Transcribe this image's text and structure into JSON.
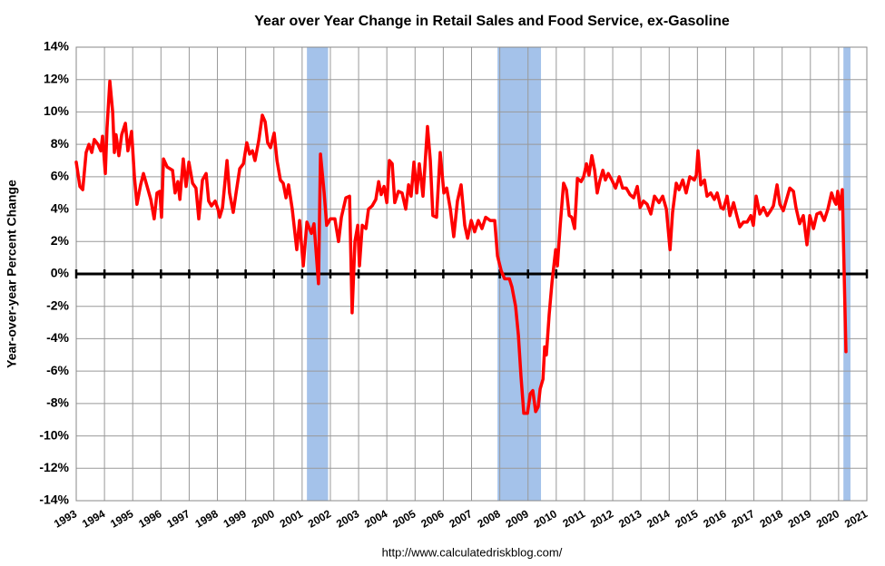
{
  "chart_data": {
    "type": "line",
    "title": "Year over Year Change in Retail Sales and Food Service, ex-Gasoline",
    "y_label": "Year-over-year Percent Change",
    "source": "http://www.calculatedriskblog.com/",
    "xlim": [
      1993,
      2021
    ],
    "xticks": [
      1993,
      1994,
      1995,
      1996,
      1997,
      1998,
      1999,
      2000,
      2001,
      2002,
      2003,
      2004,
      2005,
      2006,
      2007,
      2008,
      2009,
      2010,
      2011,
      2012,
      2013,
      2014,
      2015,
      2016,
      2017,
      2018,
      2019,
      2020,
      2021
    ],
    "ylim": [
      -14,
      14
    ],
    "yticks": [
      {
        "value": -14,
        "label": "-14%"
      },
      {
        "value": -12,
        "label": "-12%"
      },
      {
        "value": -10,
        "label": "-10%"
      },
      {
        "value": -8,
        "label": "-8%"
      },
      {
        "value": -6,
        "label": "-6%"
      },
      {
        "value": -4,
        "label": "-4%"
      },
      {
        "value": -2,
        "label": "-2%"
      },
      {
        "value": 0,
        "label": "0%"
      },
      {
        "value": 2,
        "label": "2%"
      },
      {
        "value": 4,
        "label": "4%"
      },
      {
        "value": 6,
        "label": "6%"
      },
      {
        "value": 8,
        "label": "8%"
      },
      {
        "value": 10,
        "label": "10%"
      },
      {
        "value": 12,
        "label": "12%"
      },
      {
        "value": 14,
        "label": "14%"
      }
    ],
    "grid": true,
    "recessions": [
      [
        2001.17,
        2001.92
      ],
      [
        2007.92,
        2009.46
      ],
      [
        2020.17,
        2020.42
      ]
    ],
    "recession_color": "#a4c2ea",
    "x": [
      1993.0,
      1993.13,
      1993.23,
      1993.35,
      1993.45,
      1993.55,
      1993.64,
      1993.77,
      1993.87,
      1993.93,
      1994.03,
      1994.09,
      1994.19,
      1994.29,
      1994.35,
      1994.41,
      1994.51,
      1994.61,
      1994.74,
      1994.83,
      1994.96,
      1995.06,
      1995.15,
      1995.28,
      1995.38,
      1995.51,
      1995.64,
      1995.76,
      1995.86,
      1995.96,
      1996.02,
      1996.09,
      1996.22,
      1996.41,
      1996.5,
      1996.6,
      1996.67,
      1996.79,
      1996.89,
      1996.99,
      1997.12,
      1997.24,
      1997.34,
      1997.47,
      1997.6,
      1997.69,
      1997.79,
      1997.92,
      1998.02,
      1998.08,
      1998.18,
      1998.34,
      1998.43,
      1998.56,
      1998.66,
      1998.79,
      1998.92,
      1999.04,
      1999.14,
      1999.24,
      1999.33,
      1999.46,
      1999.59,
      1999.69,
      1999.78,
      1999.88,
      2000.01,
      2000.11,
      2000.23,
      2000.33,
      2000.43,
      2000.52,
      2000.65,
      2000.81,
      2000.91,
      2001.04,
      2001.17,
      2001.33,
      2001.42,
      2001.58,
      2001.65,
      2001.78,
      2001.87,
      2002.0,
      2002.16,
      2002.29,
      2002.39,
      2002.55,
      2002.68,
      2002.77,
      2002.87,
      2002.97,
      2003.03,
      2003.13,
      2003.26,
      2003.35,
      2003.48,
      2003.61,
      2003.71,
      2003.8,
      2003.9,
      2004.0,
      2004.09,
      2004.19,
      2004.28,
      2004.41,
      2004.54,
      2004.67,
      2004.77,
      2004.86,
      2004.96,
      2005.06,
      2005.15,
      2005.28,
      2005.44,
      2005.54,
      2005.63,
      2005.76,
      2005.89,
      2006.02,
      2006.12,
      2006.25,
      2006.37,
      2006.5,
      2006.63,
      2006.76,
      2006.86,
      2006.99,
      2007.11,
      2007.24,
      2007.37,
      2007.5,
      2007.66,
      2007.82,
      2007.92,
      2008.05,
      2008.17,
      2008.34,
      2008.43,
      2008.56,
      2008.66,
      2008.75,
      2008.85,
      2008.98,
      2009.08,
      2009.17,
      2009.27,
      2009.36,
      2009.43,
      2009.53,
      2009.59,
      2009.65,
      2009.75,
      2009.85,
      2009.98,
      2010.04,
      2010.14,
      2010.26,
      2010.36,
      2010.46,
      2010.55,
      2010.65,
      2010.75,
      2010.88,
      2010.97,
      2011.07,
      2011.16,
      2011.26,
      2011.36,
      2011.45,
      2011.55,
      2011.65,
      2011.74,
      2011.84,
      2011.97,
      2012.1,
      2012.23,
      2012.35,
      2012.48,
      2012.61,
      2012.74,
      2012.87,
      2012.97,
      2013.09,
      2013.22,
      2013.35,
      2013.48,
      2013.64,
      2013.77,
      2013.9,
      2014.03,
      2014.12,
      2014.25,
      2014.35,
      2014.48,
      2014.6,
      2014.73,
      2014.89,
      2014.96,
      2015.02,
      2015.12,
      2015.25,
      2015.34,
      2015.47,
      2015.6,
      2015.7,
      2015.83,
      2015.92,
      2016.05,
      2016.15,
      2016.28,
      2016.41,
      2016.5,
      2016.63,
      2016.76,
      2016.89,
      2016.98,
      2017.08,
      2017.21,
      2017.34,
      2017.47,
      2017.59,
      2017.69,
      2017.82,
      2017.92,
      2018.04,
      2018.14,
      2018.27,
      2018.4,
      2018.49,
      2018.62,
      2018.75,
      2018.88,
      2018.98,
      2019.11,
      2019.23,
      2019.36,
      2019.49,
      2019.62,
      2019.75,
      2019.85,
      2019.91,
      2019.97,
      2020.04,
      2020.13,
      2020.26
    ],
    "series": [
      {
        "color": "#ff0000",
        "values": [
          6.9,
          5.4,
          5.2,
          7.5,
          8.0,
          7.5,
          8.3,
          8.0,
          7.6,
          8.5,
          6.2,
          9.0,
          11.9,
          10.0,
          7.5,
          8.6,
          7.3,
          8.6,
          9.3,
          7.6,
          8.8,
          6.0,
          4.3,
          5.5,
          6.2,
          5.4,
          4.6,
          3.4,
          5.0,
          5.1,
          3.5,
          7.1,
          6.6,
          6.4,
          5.0,
          5.7,
          4.6,
          7.1,
          5.4,
          6.9,
          5.6,
          5.3,
          3.4,
          5.8,
          6.2,
          4.5,
          4.2,
          4.5,
          4.0,
          3.5,
          4.1,
          7.0,
          5.0,
          3.8,
          5.0,
          6.5,
          6.8,
          8.1,
          7.4,
          7.6,
          7.0,
          8.2,
          9.8,
          9.4,
          8.1,
          7.8,
          8.7,
          7.0,
          5.8,
          5.6,
          4.7,
          5.5,
          4.0,
          1.5,
          3.3,
          0.5,
          3.2,
          2.5,
          3.1,
          -0.6,
          7.4,
          5.0,
          3.0,
          3.4,
          3.4,
          2.0,
          3.5,
          4.7,
          4.8,
          -2.4,
          2.0,
          3.0,
          0.5,
          3.0,
          2.8,
          4.0,
          4.2,
          4.6,
          5.7,
          4.9,
          5.4,
          4.4,
          7.0,
          6.8,
          4.4,
          5.1,
          5.0,
          4.0,
          5.5,
          4.8,
          6.9,
          5.0,
          6.8,
          4.8,
          9.1,
          7.0,
          3.6,
          3.5,
          7.5,
          5.0,
          5.3,
          4.0,
          2.3,
          4.5,
          5.5,
          3.0,
          2.2,
          3.3,
          2.6,
          3.3,
          2.8,
          3.5,
          3.3,
          3.3,
          1.1,
          0.2,
          -0.3,
          -0.3,
          -0.8,
          -2.0,
          -3.8,
          -6.3,
          -8.6,
          -8.6,
          -7.4,
          -7.2,
          -8.5,
          -8.2,
          -7.1,
          -6.5,
          -4.5,
          -5.0,
          -2.5,
          -0.5,
          1.5,
          0.5,
          3.0,
          5.6,
          5.2,
          3.6,
          3.5,
          2.8,
          5.9,
          5.7,
          6.0,
          6.8,
          6.1,
          7.3,
          6.4,
          5.0,
          5.8,
          6.4,
          5.8,
          6.2,
          5.8,
          5.3,
          6.0,
          5.3,
          5.3,
          4.9,
          4.7,
          5.4,
          4.1,
          4.5,
          4.3,
          3.7,
          4.8,
          4.4,
          4.8,
          4.0,
          1.5,
          3.8,
          5.6,
          5.2,
          5.8,
          5.0,
          6.0,
          5.8,
          6.1,
          7.6,
          5.5,
          5.8,
          4.8,
          5.0,
          4.6,
          5.0,
          4.1,
          4.0,
          4.8,
          3.6,
          4.4,
          3.5,
          2.9,
          3.2,
          3.2,
          3.6,
          3.0,
          4.8,
          3.7,
          4.1,
          3.6,
          3.9,
          4.2,
          5.5,
          4.3,
          3.9,
          4.5,
          5.3,
          5.1,
          4.1,
          3.1,
          3.6,
          1.8,
          3.6,
          2.8,
          3.7,
          3.8,
          3.3,
          4.0,
          5.0,
          4.5,
          4.3,
          5.1,
          4.0,
          5.2,
          -4.8
        ]
      }
    ]
  }
}
